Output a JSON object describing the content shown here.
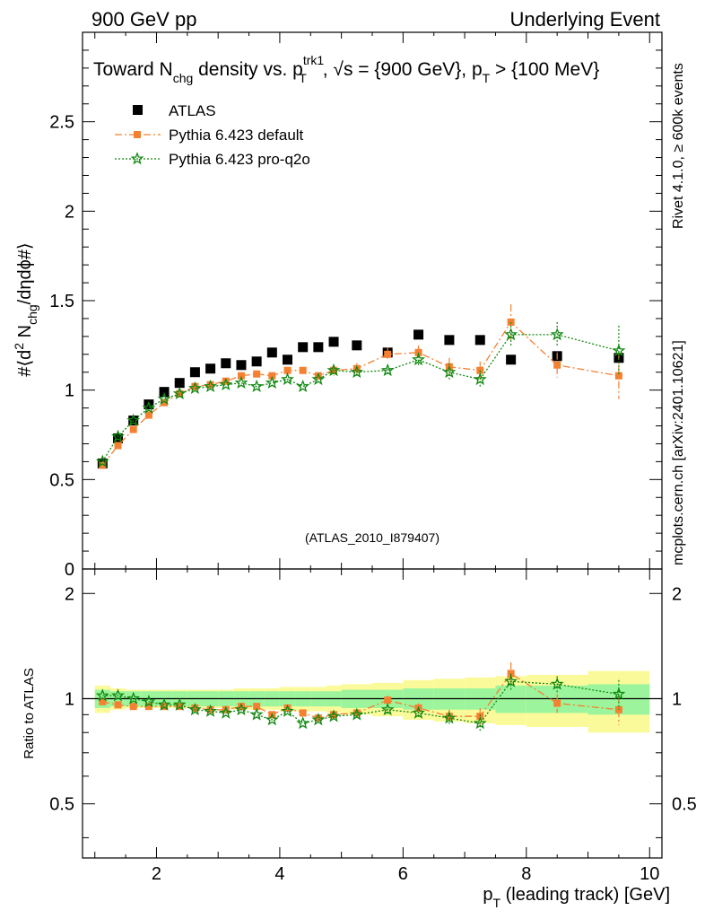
{
  "header": {
    "left": "900 GeV pp",
    "right": "Underlying Event"
  },
  "plot_title": {
    "part1": "Toward N",
    "sub1": "chg",
    "part2": " density vs. p",
    "sup2": "trk1",
    "sub2": "T",
    "part3": ", √s = {900 GeV}, p",
    "sub3": "T",
    "part4": " > {100 MeV}"
  },
  "ylabel": {
    "part1": "#⟨d",
    "sup1": "2",
    "part2": " N",
    "sub2": "chg",
    "part3": "/dηdϕ#⟩"
  },
  "ratio_ylabel": "Ratio to ATLAS",
  "xlabel": {
    "p": "p",
    "sub": "T",
    "rest": " (leading track) [GeV]"
  },
  "side_text": {
    "rivet": "Rivet 4.1.0, ≥ 600k events",
    "mcplots": "mcplots.cern.ch [arXiv:2401.10621]"
  },
  "reference": "(ATLAS_2010_I879407)",
  "colors": {
    "atlas": "#000000",
    "default": "#f48030",
    "proq2o": "#118811",
    "band_green": "#9cf59c",
    "band_yellow": "#fbfa9a"
  },
  "chart_data": [
    {
      "type": "scatter",
      "panel": "main",
      "title": "Toward Nchg density vs. pT trk1, √s = {900 GeV}, pT > {100 MeV}",
      "xlim": [
        0.8,
        10.2
      ],
      "ylim": [
        0,
        3.0
      ],
      "y_ticks": [
        "0.5",
        "1",
        "1.5",
        "2",
        "2.5"
      ],
      "y_tick_values": [
        0.5,
        1,
        1.5,
        2,
        2.5
      ],
      "y_bottom_label": "0",
      "x_ticks": [
        "2",
        "4",
        "6",
        "8",
        "10"
      ],
      "x_tick_values": [
        2,
        4,
        6,
        8,
        10
      ],
      "legend": [
        "ATLAS",
        "Pythia 6.423 default",
        "Pythia 6.423 pro-q2o"
      ],
      "x": [
        1.125,
        1.375,
        1.625,
        1.875,
        2.125,
        2.375,
        2.625,
        2.875,
        3.125,
        3.375,
        3.625,
        3.875,
        4.125,
        4.375,
        4.625,
        4.875,
        5.25,
        5.75,
        6.25,
        6.75,
        7.25,
        7.75,
        8.5,
        9.5
      ],
      "series": [
        {
          "name": "ATLAS",
          "values": [
            0.59,
            0.73,
            0.83,
            0.92,
            0.99,
            1.04,
            1.1,
            1.12,
            1.15,
            1.14,
            1.16,
            1.21,
            1.17,
            1.24,
            1.24,
            1.27,
            1.25,
            1.21,
            1.31,
            1.28,
            1.28,
            1.17,
            1.19,
            1.18
          ]
        },
        {
          "name": "Pythia 6.423 default",
          "values": [
            0.58,
            0.69,
            0.78,
            0.86,
            0.93,
            0.98,
            1.02,
            1.03,
            1.05,
            1.08,
            1.09,
            1.08,
            1.11,
            1.11,
            1.08,
            1.11,
            1.12,
            1.2,
            1.21,
            1.13,
            1.11,
            1.38,
            1.14,
            1.08
          ]
        },
        {
          "name": "Pythia 6.423 pro-q2o",
          "values": [
            0.6,
            0.74,
            0.83,
            0.9,
            0.95,
            0.98,
            1.01,
            1.02,
            1.03,
            1.04,
            1.02,
            1.04,
            1.06,
            1.02,
            1.06,
            1.11,
            1.1,
            1.11,
            1.17,
            1.1,
            1.06,
            1.31,
            1.31,
            1.22
          ]
        }
      ],
      "errors": {
        "Pythia 6.423 default": [
          0,
          0,
          0,
          0,
          0,
          0,
          0,
          0,
          0,
          0,
          0,
          0,
          0,
          0,
          0,
          0.03,
          0.03,
          0.04,
          0.04,
          0.05,
          0.05,
          0.1,
          0.07,
          0.13
        ],
        "Pythia 6.423 pro-q2o": [
          0,
          0,
          0,
          0,
          0,
          0,
          0,
          0,
          0,
          0,
          0,
          0,
          0,
          0,
          0,
          0.03,
          0.03,
          0.03,
          0.04,
          0.05,
          0.05,
          0.07,
          0.07,
          0.14
        ]
      }
    },
    {
      "type": "scatter",
      "panel": "ratio",
      "ylabel": "Ratio to ATLAS",
      "xlim": [
        0.8,
        10.2
      ],
      "ylim": [
        0.35,
        2.35
      ],
      "y_ticks": [
        "0.5",
        "1",
        "2"
      ],
      "y_tick_values": [
        0.5,
        1,
        2
      ],
      "x_ticks": [
        "2",
        "4",
        "6",
        "8",
        "10"
      ],
      "x_tick_values": [
        2,
        4,
        6,
        8,
        10
      ],
      "x": [
        1.125,
        1.375,
        1.625,
        1.875,
        2.125,
        2.375,
        2.625,
        2.875,
        3.125,
        3.375,
        3.625,
        3.875,
        4.125,
        4.375,
        4.625,
        4.875,
        5.25,
        5.75,
        6.25,
        6.75,
        7.25,
        7.75,
        8.5,
        9.5
      ],
      "bin_edges": [
        1.0,
        1.25,
        1.5,
        1.75,
        2.0,
        2.25,
        2.5,
        2.75,
        3.0,
        3.25,
        3.5,
        3.75,
        4.0,
        4.25,
        4.5,
        4.75,
        5.0,
        5.5,
        6.0,
        6.5,
        7.0,
        7.5,
        8.0,
        9.0,
        10.0
      ],
      "series": [
        {
          "name": "Pythia 6.423 default",
          "values": [
            0.98,
            0.96,
            0.95,
            0.95,
            0.95,
            0.95,
            0.94,
            0.93,
            0.93,
            0.95,
            0.95,
            0.9,
            0.94,
            0.91,
            0.88,
            0.9,
            0.91,
            0.99,
            0.94,
            0.89,
            0.89,
            1.18,
            0.97,
            0.93
          ]
        },
        {
          "name": "Pythia 6.423 pro-q2o",
          "values": [
            1.02,
            1.02,
            1.0,
            0.98,
            0.96,
            0.96,
            0.93,
            0.92,
            0.91,
            0.93,
            0.9,
            0.87,
            0.92,
            0.85,
            0.87,
            0.89,
            0.9,
            0.93,
            0.91,
            0.88,
            0.85,
            1.12,
            1.1,
            1.03
          ]
        }
      ],
      "errors": {
        "Pythia 6.423 default": [
          0,
          0,
          0,
          0,
          0,
          0,
          0,
          0,
          0,
          0,
          0,
          0,
          0,
          0,
          0,
          0.02,
          0.02,
          0.03,
          0.03,
          0.04,
          0.05,
          0.09,
          0.06,
          0.09
        ],
        "Pythia 6.423 pro-q2o": [
          0,
          0,
          0,
          0,
          0,
          0,
          0,
          0,
          0,
          0,
          0,
          0,
          0,
          0,
          0,
          0.02,
          0.02,
          0.03,
          0.03,
          0.04,
          0.05,
          0.06,
          0.06,
          0.1
        ]
      },
      "band_green_half": [
        0.06,
        0.05,
        0.05,
        0.05,
        0.05,
        0.05,
        0.05,
        0.05,
        0.05,
        0.05,
        0.05,
        0.05,
        0.05,
        0.05,
        0.05,
        0.05,
        0.06,
        0.06,
        0.07,
        0.07,
        0.07,
        0.09,
        0.09,
        0.1
      ],
      "band_yellow_half": [
        0.09,
        0.07,
        0.06,
        0.06,
        0.06,
        0.06,
        0.06,
        0.06,
        0.06,
        0.07,
        0.07,
        0.07,
        0.08,
        0.08,
        0.08,
        0.09,
        0.1,
        0.11,
        0.13,
        0.14,
        0.15,
        0.16,
        0.17,
        0.2
      ]
    }
  ]
}
